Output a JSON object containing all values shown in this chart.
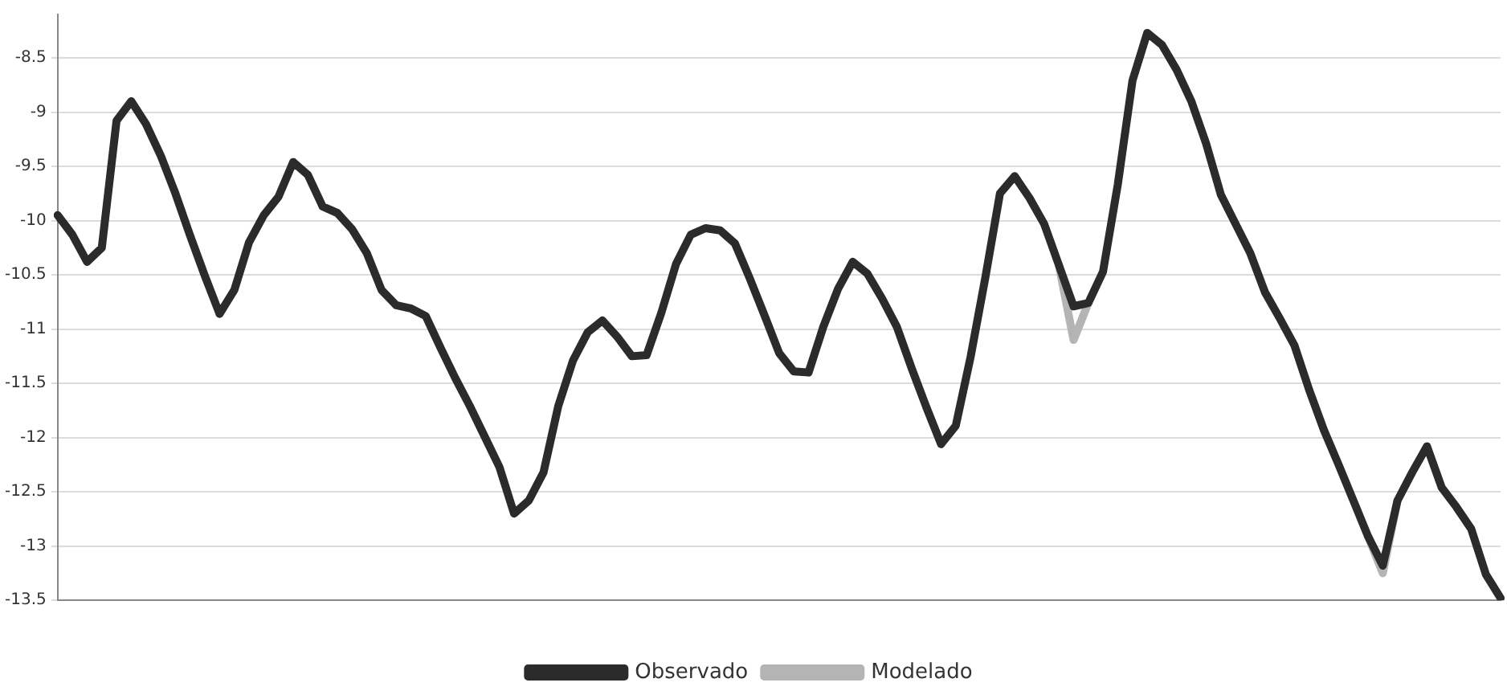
{
  "chart_data": {
    "type": "line",
    "categories": [
      null,
      null,
      null,
      null,
      null,
      null,
      null,
      null,
      null,
      null,
      null,
      null,
      null,
      null,
      null,
      null,
      null,
      null,
      null,
      null,
      null,
      null,
      null,
      null,
      null,
      null,
      null,
      null,
      null,
      null,
      null,
      null,
      null,
      null,
      null,
      null,
      null,
      null,
      null,
      null,
      null,
      null,
      null,
      null,
      null,
      null,
      null,
      null,
      null,
      null,
      null,
      null,
      null,
      null,
      null,
      null,
      null,
      null,
      null,
      null,
      null,
      null,
      null,
      null,
      null,
      null,
      null,
      null,
      null,
      null,
      null,
      null,
      null,
      null,
      null,
      null,
      null,
      null,
      null,
      null,
      null,
      null,
      null,
      null,
      null,
      null,
      null,
      null,
      null,
      null,
      null,
      null,
      null,
      null,
      null,
      null,
      null,
      null,
      null
    ],
    "ylim": [
      -13.5,
      -8.1
    ],
    "yticks": [
      -13.5,
      -13,
      -12.5,
      -12,
      -11.5,
      -11,
      -10.5,
      -10,
      -9.5,
      -9,
      -8.5
    ],
    "grid": "y",
    "legend": "bottom",
    "marker": "none",
    "line_style": "solid",
    "series": [
      {
        "name": "Observado",
        "color": "#2b2b2b",
        "values": [
          -9.95,
          -10.13,
          -10.38,
          -10.25,
          -9.08,
          -8.9,
          -9.11,
          -9.4,
          -9.75,
          -10.14,
          -10.51,
          -10.86,
          -10.64,
          -10.2,
          -9.95,
          -9.78,
          -9.46,
          -9.58,
          -9.87,
          -9.93,
          -10.08,
          -10.3,
          -10.64,
          -10.78,
          -10.81,
          -10.88,
          -11.17,
          -11.45,
          -11.71,
          -11.99,
          -12.27,
          -12.7,
          -12.58,
          -12.32,
          -11.71,
          -11.29,
          -11.03,
          -10.92,
          -11.07,
          -11.25,
          -11.24,
          -10.85,
          -10.4,
          -10.13,
          -10.07,
          -10.09,
          -10.21,
          -10.53,
          -10.87,
          -11.22,
          -11.39,
          -11.4,
          -10.98,
          -10.63,
          -10.38,
          -10.49,
          -10.72,
          -10.98,
          -11.36,
          -11.72,
          -12.06,
          -11.89,
          -11.26,
          -10.53,
          -9.75,
          -9.59,
          -9.79,
          -10.03,
          -10.41,
          -10.79,
          -10.76,
          -10.47,
          -9.67,
          -8.71,
          -8.27,
          -8.38,
          -8.61,
          -8.9,
          -9.29,
          -9.76,
          -10.03,
          -10.3,
          -10.66,
          -10.9,
          -11.15,
          -11.56,
          -11.93,
          -12.25,
          -12.58,
          -12.91,
          -13.18,
          -12.58,
          -12.32,
          -12.08,
          -12.46,
          -12.64,
          -12.84,
          -13.26,
          -13.48
        ]
      },
      {
        "name": "Modelado",
        "color": "#b4b4b4",
        "values": [
          null,
          null,
          null,
          null,
          null,
          null,
          null,
          null,
          null,
          null,
          null,
          null,
          null,
          null,
          null,
          null,
          null,
          null,
          -9.87,
          -9.93,
          null,
          null,
          null,
          null,
          null,
          null,
          null,
          null,
          null,
          null,
          null,
          null,
          null,
          null,
          null,
          null,
          null,
          null,
          null,
          null,
          null,
          null,
          null,
          null,
          null,
          null,
          null,
          null,
          null,
          null,
          null,
          null,
          null,
          null,
          null,
          null,
          null,
          null,
          null,
          -11.72,
          -12.06,
          null,
          null,
          null,
          null,
          null,
          null,
          null,
          -10.41,
          -11.1,
          -10.76,
          null,
          null,
          null,
          null,
          null,
          null,
          null,
          null,
          null,
          null,
          null,
          null,
          null,
          null,
          null,
          null,
          null,
          null,
          -12.91,
          -13.25,
          -12.58,
          null,
          null,
          null,
          null,
          null,
          null,
          null
        ]
      }
    ]
  }
}
